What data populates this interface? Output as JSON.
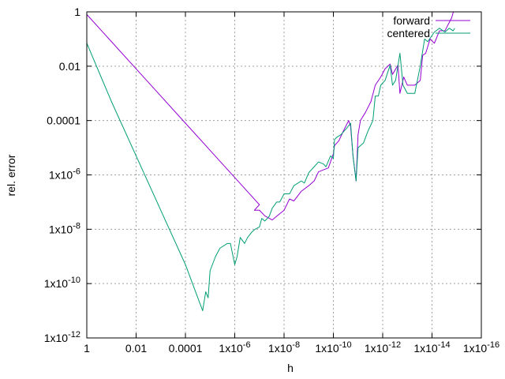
{
  "chart_data": {
    "type": "line",
    "xlabel": "h",
    "ylabel": "rel. error",
    "x_scale": "log",
    "y_scale": "log",
    "x_reversed": true,
    "xlim": [
      1,
      1e-16
    ],
    "ylim": [
      1e-12,
      1
    ],
    "grid": true,
    "legend_position": "top-right",
    "x_ticks": [
      {
        "value": 1,
        "base": "1",
        "exp": ""
      },
      {
        "value": 0.01,
        "base": "0.01",
        "exp": ""
      },
      {
        "value": 0.0001,
        "base": "0.0001",
        "exp": ""
      },
      {
        "value": 1e-06,
        "base": "1x10",
        "exp": "-6"
      },
      {
        "value": 1e-08,
        "base": "1x10",
        "exp": "-8"
      },
      {
        "value": 1e-10,
        "base": "1x10",
        "exp": "-10"
      },
      {
        "value": 1e-12,
        "base": "1x10",
        "exp": "-12"
      },
      {
        "value": 1e-14,
        "base": "1x10",
        "exp": "-14"
      },
      {
        "value": 1e-16,
        "base": "1x10",
        "exp": "-16"
      }
    ],
    "y_ticks": [
      {
        "value": 1,
        "base": "1",
        "exp": ""
      },
      {
        "value": 0.01,
        "base": "0.01",
        "exp": ""
      },
      {
        "value": 0.0001,
        "base": "0.0001",
        "exp": ""
      },
      {
        "value": 1e-06,
        "base": "1x10",
        "exp": "-6"
      },
      {
        "value": 1e-08,
        "base": "1x10",
        "exp": "-8"
      },
      {
        "value": 1e-10,
        "base": "1x10",
        "exp": "-10"
      },
      {
        "value": 1e-12,
        "base": "1x10",
        "exp": "-12"
      }
    ],
    "series": [
      {
        "name": "forward",
        "color": "#9400d3",
        "points": [
          [
            1,
            0.8
          ],
          [
            0.1,
            0.08
          ],
          [
            0.01,
            0.008
          ],
          [
            0.001,
            0.0008
          ],
          [
            0.0001,
            8e-05
          ],
          [
            1e-05,
            8e-06
          ],
          [
            1e-06,
            8e-07
          ],
          [
            1e-07,
            8e-08
          ],
          [
            1.6e-07,
            5e-08
          ],
          [
            1e-07,
            5e-08
          ],
          [
            6e-08,
            3.1e-08
          ],
          [
            3e-08,
            2.2e-08
          ],
          [
            2e-08,
            3e-08
          ],
          [
            1e-08,
            5e-08
          ],
          [
            6e-09,
            1.3e-07
          ],
          [
            4e-09,
            1.1e-07
          ],
          [
            2e-09,
            2.5e-07
          ],
          [
            1e-09,
            4e-07
          ],
          [
            6e-10,
            6e-07
          ],
          [
            4e-10,
            1.3e-06
          ],
          [
            1.6e-10,
            1.8e-06
          ],
          [
            1e-10,
            6e-06
          ],
          [
            9e-11,
            1.2e-05
          ],
          [
            6e-11,
            1.8e-05
          ],
          [
            4e-11,
            4e-05
          ],
          [
            2.4e-11,
            0.0001
          ],
          [
            2e-11,
            6e-05
          ],
          [
            1.6e-11,
            5e-06
          ],
          [
            1.2e-11,
            6e-07
          ],
          [
            1e-11,
            3e-05
          ],
          [
            8e-12,
            0.0001
          ],
          [
            5e-12,
            0.0002
          ],
          [
            3e-12,
            0.0005
          ],
          [
            2e-12,
            0.002
          ],
          [
            1.2e-12,
            0.004
          ],
          [
            8e-13,
            0.008
          ],
          [
            5e-13,
            0.012
          ],
          [
            4e-13,
            0.005
          ],
          [
            2.4e-13,
            0.011
          ],
          [
            2e-13,
            0.001
          ],
          [
            1.4e-13,
            0.004
          ],
          [
            1e-13,
            0.002
          ],
          [
            5e-14,
            0.002
          ],
          [
            3e-14,
            0.003
          ],
          [
            2.4e-14,
            0.025
          ],
          [
            1.8e-14,
            0.03
          ],
          [
            1.2e-14,
            0.1
          ],
          [
            8e-15,
            0.07
          ],
          [
            5e-15,
            0.2
          ],
          [
            3e-15,
            0.2
          ],
          [
            1.6e-15,
            0.6
          ],
          [
            1.2e-15,
            1.5
          ]
        ]
      },
      {
        "name": "centered",
        "color": "#009e73",
        "points": [
          [
            1,
            0.07
          ],
          [
            0.1,
            0.0005
          ],
          [
            0.01,
            5e-06
          ],
          [
            0.001,
            5e-08
          ],
          [
            0.0001,
            5e-10
          ],
          [
            2e-05,
            1e-11
          ],
          [
            1.5e-05,
            5e-11
          ],
          [
            1.2e-05,
            3e-11
          ],
          [
            1e-05,
            3e-10
          ],
          [
            6e-06,
            1e-09
          ],
          [
            4e-06,
            2e-09
          ],
          [
            2e-06,
            3e-09
          ],
          [
            1.5e-06,
            3e-09
          ],
          [
            1e-06,
            5e-10
          ],
          [
            8e-07,
            1e-09
          ],
          [
            6e-07,
            5e-09
          ],
          [
            4e-07,
            3e-09
          ],
          [
            3e-07,
            5e-09
          ],
          [
            2e-07,
            8e-09
          ],
          [
            1.5e-07,
            1e-08
          ],
          [
            1e-07,
            1.2e-08
          ],
          [
            8e-08,
            2.5e-08
          ],
          [
            6e-08,
            2e-08
          ],
          [
            4e-08,
            3e-08
          ],
          [
            3e-08,
            6e-08
          ],
          [
            2e-08,
            1e-07
          ],
          [
            1.5e-08,
            1e-07
          ],
          [
            1e-08,
            2e-07
          ],
          [
            6e-09,
            2e-07
          ],
          [
            4e-09,
            4e-07
          ],
          [
            2e-09,
            6e-07
          ],
          [
            1.5e-09,
            5e-07
          ],
          [
            1e-09,
            1.2e-06
          ],
          [
            8e-10,
            1.5e-06
          ],
          [
            6e-10,
            2e-06
          ],
          [
            4e-10,
            3e-06
          ],
          [
            2.5e-10,
            2.5e-06
          ],
          [
            2e-10,
            2e-06
          ],
          [
            1.3e-10,
            5e-06
          ],
          [
            1e-10,
            4e-06
          ],
          [
            9e-11,
            2e-05
          ],
          [
            7e-11,
            2.5e-05
          ],
          [
            5e-11,
            3e-05
          ],
          [
            3e-11,
            5e-05
          ],
          [
            2e-11,
            8e-05
          ],
          [
            1.6e-11,
            5e-06
          ],
          [
            1.2e-11,
            6e-07
          ],
          [
            1e-11,
            1e-05
          ],
          [
            6e-12,
            1.5e-05
          ],
          [
            4e-12,
            4e-05
          ],
          [
            2.5e-12,
            0.0001
          ],
          [
            2e-12,
            0.0008
          ],
          [
            1.5e-12,
            0.0008
          ],
          [
            1.2e-12,
            0.002
          ],
          [
            8e-13,
            0.003
          ],
          [
            5e-13,
            0.011
          ],
          [
            4e-13,
            0.002
          ],
          [
            3e-13,
            0.003
          ],
          [
            2e-13,
            0.03
          ],
          [
            1.5e-13,
            0.002
          ],
          [
            1e-13,
            0.001
          ],
          [
            5e-14,
            0.001
          ],
          [
            3e-14,
            0.01
          ],
          [
            2e-14,
            0.1
          ],
          [
            1.5e-14,
            0.08
          ],
          [
            8e-15,
            0.18
          ],
          [
            5e-15,
            0.25
          ],
          [
            3e-15,
            0.18
          ],
          [
            2e-15,
            0.25
          ],
          [
            1.4e-15,
            0.2
          ],
          [
            1.2e-15,
            0.25
          ]
        ]
      }
    ]
  }
}
